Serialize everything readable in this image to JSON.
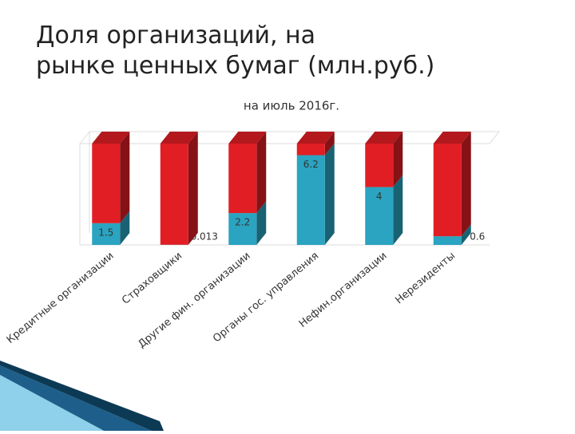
{
  "chart_data": {
    "type": "bar3d_stacked",
    "title": "Доля организаций, на рынке ценных бумаг (млн.руб.)",
    "subtitle": "на июль 2016г.",
    "categories": [
      "Кредитные организации",
      "Страховщики",
      "Другие фин. организации",
      "Органы гос. управления",
      "Нефин.организации",
      "Нерезиденты"
    ],
    "series": [
      {
        "color": "#2aa4c0",
        "values": [
          1.5,
          0.013,
          2.2,
          6.2,
          4,
          0.6
        ]
      },
      {
        "color": "#e01e24",
        "values": [
          5.5,
          6.987,
          4.8,
          0.8,
          3,
          6.4
        ]
      }
    ],
    "ylim": [
      0,
      7
    ]
  }
}
